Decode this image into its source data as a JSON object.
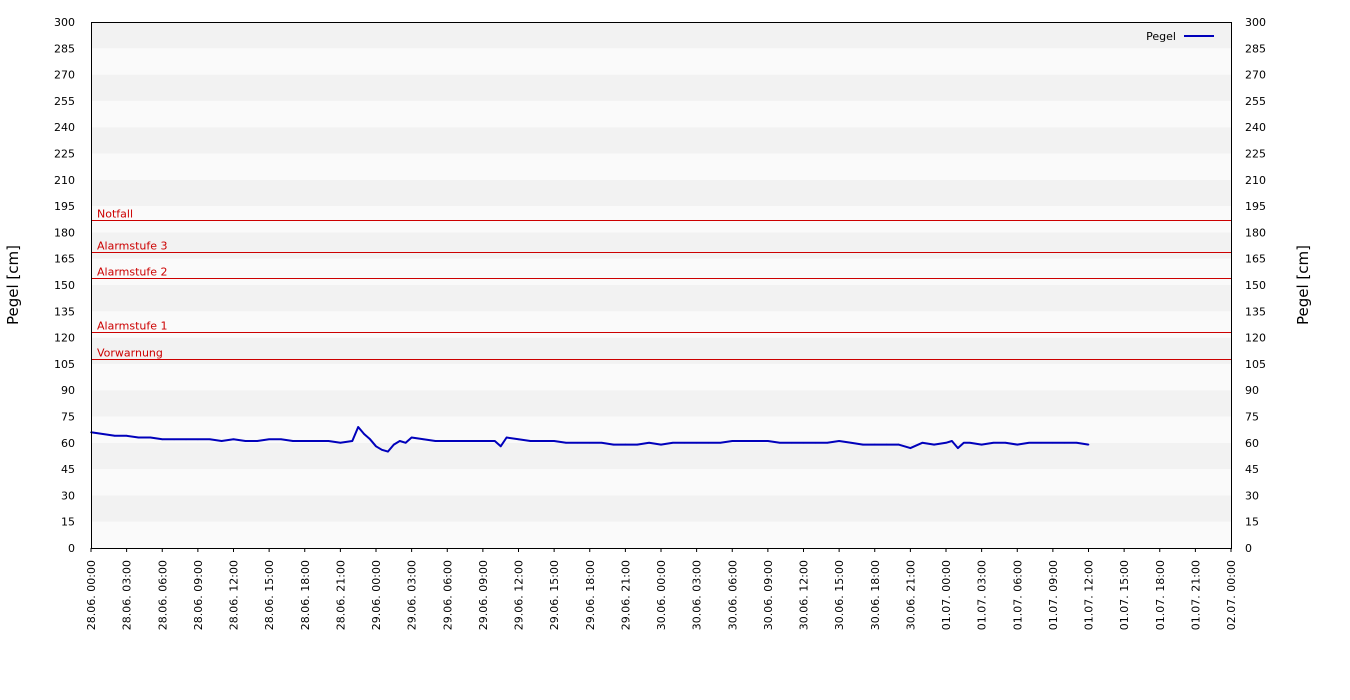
{
  "chart_data": {
    "type": "line",
    "title": "",
    "ylabel_left": "Pegel [cm]",
    "ylabel_right": "Pegel [cm]",
    "ylim": [
      0,
      300
    ],
    "y_ticks": [
      0,
      15,
      30,
      45,
      60,
      75,
      90,
      105,
      120,
      135,
      150,
      165,
      180,
      195,
      210,
      225,
      240,
      255,
      270,
      285,
      300
    ],
    "x_range": [
      "28.06. 00:00",
      "02.07. 00:00"
    ],
    "x_ticks": [
      "28.06. 00:00",
      "28.06. 03:00",
      "28.06. 06:00",
      "28.06. 09:00",
      "28.06. 12:00",
      "28.06. 15:00",
      "28.06. 18:00",
      "28.06. 21:00",
      "29.06. 00:00",
      "29.06. 03:00",
      "29.06. 06:00",
      "29.06. 09:00",
      "29.06. 12:00",
      "29.06. 15:00",
      "29.06. 18:00",
      "29.06. 21:00",
      "30.06. 00:00",
      "30.06. 03:00",
      "30.06. 06:00",
      "30.06. 09:00",
      "30.06. 12:00",
      "30.06. 15:00",
      "30.06. 18:00",
      "30.06. 21:00",
      "01.07. 00:00",
      "01.07. 03:00",
      "01.07. 06:00",
      "01.07. 09:00",
      "01.07. 12:00",
      "01.07. 15:00",
      "01.07. 18:00",
      "01.07. 21:00",
      "02.07. 00:00"
    ],
    "grid": "alternating horizontal bands",
    "legend": {
      "position": "top-right",
      "entries": [
        "Pegel"
      ]
    },
    "colors": {
      "series": "#0000bb",
      "threshold": "#cc0000",
      "band_dark": "#f2f2f2",
      "band_light": "#fafafa"
    },
    "thresholds": [
      {
        "label": "Notfall",
        "value": 187
      },
      {
        "label": "Alarmstufe 3",
        "value": 169
      },
      {
        "label": "Alarmstufe 2",
        "value": 154
      },
      {
        "label": "Alarmstufe 1",
        "value": 123
      },
      {
        "label": "Vorwarnung",
        "value": 108
      }
    ],
    "series": [
      {
        "name": "Pegel",
        "points": [
          [
            "28.06. 00:00",
            66
          ],
          [
            "28.06. 01:00",
            65
          ],
          [
            "28.06. 02:00",
            64
          ],
          [
            "28.06. 03:00",
            64
          ],
          [
            "28.06. 04:00",
            63
          ],
          [
            "28.06. 05:00",
            63
          ],
          [
            "28.06. 06:00",
            62
          ],
          [
            "28.06. 07:00",
            62
          ],
          [
            "28.06. 08:00",
            62
          ],
          [
            "28.06. 09:00",
            62
          ],
          [
            "28.06. 10:00",
            62
          ],
          [
            "28.06. 11:00",
            61
          ],
          [
            "28.06. 12:00",
            62
          ],
          [
            "28.06. 13:00",
            61
          ],
          [
            "28.06. 14:00",
            61
          ],
          [
            "28.06. 15:00",
            62
          ],
          [
            "28.06. 16:00",
            62
          ],
          [
            "28.06. 17:00",
            61
          ],
          [
            "28.06. 18:00",
            61
          ],
          [
            "28.06. 19:00",
            61
          ],
          [
            "28.06. 20:00",
            61
          ],
          [
            "28.06. 21:00",
            60
          ],
          [
            "28.06. 22:00",
            61
          ],
          [
            "28.06. 22:30",
            69
          ],
          [
            "28.06. 23:00",
            65
          ],
          [
            "28.06. 23:30",
            62
          ],
          [
            "29.06. 00:00",
            58
          ],
          [
            "29.06. 00:30",
            56
          ],
          [
            "29.06. 01:00",
            55
          ],
          [
            "29.06. 01:30",
            59
          ],
          [
            "29.06. 02:00",
            61
          ],
          [
            "29.06. 02:30",
            60
          ],
          [
            "29.06. 03:00",
            63
          ],
          [
            "29.06. 04:00",
            62
          ],
          [
            "29.06. 05:00",
            61
          ],
          [
            "29.06. 06:00",
            61
          ],
          [
            "29.06. 07:00",
            61
          ],
          [
            "29.06. 08:00",
            61
          ],
          [
            "29.06. 09:00",
            61
          ],
          [
            "29.06. 10:00",
            61
          ],
          [
            "29.06. 10:30",
            58
          ],
          [
            "29.06. 11:00",
            63
          ],
          [
            "29.06. 12:00",
            62
          ],
          [
            "29.06. 13:00",
            61
          ],
          [
            "29.06. 14:00",
            61
          ],
          [
            "29.06. 15:00",
            61
          ],
          [
            "29.06. 16:00",
            60
          ],
          [
            "29.06. 17:00",
            60
          ],
          [
            "29.06. 18:00",
            60
          ],
          [
            "29.06. 19:00",
            60
          ],
          [
            "29.06. 20:00",
            59
          ],
          [
            "29.06. 21:00",
            59
          ],
          [
            "29.06. 22:00",
            59
          ],
          [
            "29.06. 23:00",
            60
          ],
          [
            "30.06. 00:00",
            59
          ],
          [
            "30.06. 01:00",
            60
          ],
          [
            "30.06. 02:00",
            60
          ],
          [
            "30.06. 03:00",
            60
          ],
          [
            "30.06. 04:00",
            60
          ],
          [
            "30.06. 05:00",
            60
          ],
          [
            "30.06. 06:00",
            61
          ],
          [
            "30.06. 07:00",
            61
          ],
          [
            "30.06. 08:00",
            61
          ],
          [
            "30.06. 09:00",
            61
          ],
          [
            "30.06. 10:00",
            60
          ],
          [
            "30.06. 11:00",
            60
          ],
          [
            "30.06. 12:00",
            60
          ],
          [
            "30.06. 13:00",
            60
          ],
          [
            "30.06. 14:00",
            60
          ],
          [
            "30.06. 15:00",
            61
          ],
          [
            "30.06. 16:00",
            60
          ],
          [
            "30.06. 17:00",
            59
          ],
          [
            "30.06. 18:00",
            59
          ],
          [
            "30.06. 19:00",
            59
          ],
          [
            "30.06. 20:00",
            59
          ],
          [
            "30.06. 21:00",
            57
          ],
          [
            "30.06. 22:00",
            60
          ],
          [
            "30.06. 23:00",
            59
          ],
          [
            "01.07. 00:00",
            60
          ],
          [
            "01.07. 00:30",
            61
          ],
          [
            "01.07. 01:00",
            57
          ],
          [
            "01.07. 01:30",
            60
          ],
          [
            "01.07. 02:00",
            60
          ],
          [
            "01.07. 03:00",
            59
          ],
          [
            "01.07. 04:00",
            60
          ],
          [
            "01.07. 05:00",
            60
          ],
          [
            "01.07. 06:00",
            59
          ],
          [
            "01.07. 07:00",
            60
          ],
          [
            "01.07. 08:00",
            60
          ],
          [
            "01.07. 09:00",
            60
          ],
          [
            "01.07. 10:00",
            60
          ],
          [
            "01.07. 11:00",
            60
          ],
          [
            "01.07. 12:00",
            59
          ]
        ]
      }
    ]
  }
}
